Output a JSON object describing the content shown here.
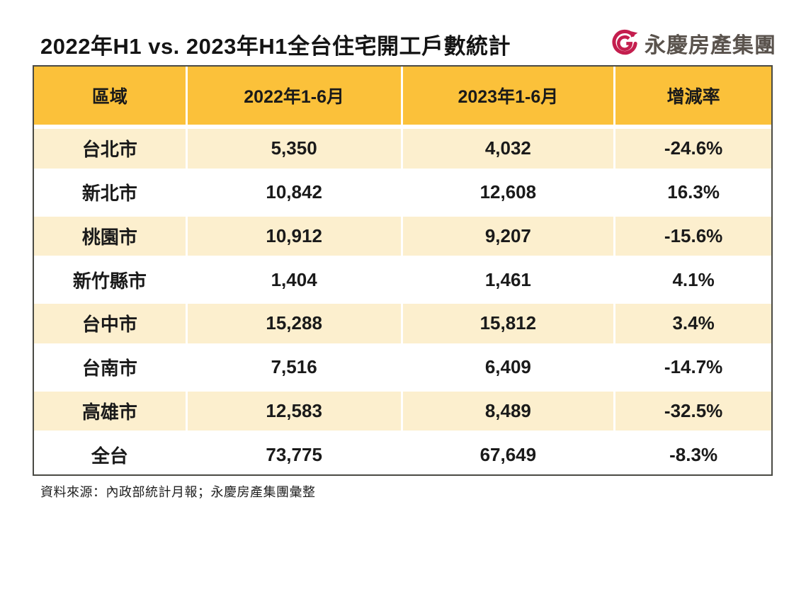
{
  "page": {
    "title": "2022年H1 vs. 2023年H1全台住宅開工戶數統計",
    "source_note": "資料來源：內政部統計月報；永慶房產集團彙整"
  },
  "logo": {
    "text": "永慶房產集團",
    "icon": "yungching-logo-icon"
  },
  "colors": {
    "header_bg": "#FBC13A",
    "row_stripe_bg": "#FCEFCE",
    "table_border": "#4A4A44",
    "logo_red": "#C41E4E",
    "logo_text_gray": "#59524C",
    "text_black": "#1A1A1A"
  },
  "table": {
    "headers": [
      "區域",
      "2022年1-6月",
      "2023年1-6月",
      "增減率"
    ],
    "rows": [
      [
        "台北市",
        "5,350",
        "4,032",
        "-24.6%"
      ],
      [
        "新北市",
        "10,842",
        "12,608",
        "16.3%"
      ],
      [
        "桃園市",
        "10,912",
        "9,207",
        "-15.6%"
      ],
      [
        "新竹縣市",
        "1,404",
        "1,461",
        "4.1%"
      ],
      [
        "台中市",
        "15,288",
        "15,812",
        "3.4%"
      ],
      [
        "台南市",
        "7,516",
        "6,409",
        "-14.7%"
      ],
      [
        "高雄市",
        "12,583",
        "8,489",
        "-32.5%"
      ],
      [
        "全台",
        "73,775",
        "67,649",
        "-8.3%"
      ]
    ]
  },
  "chart_data": {
    "type": "table",
    "title": "2022年H1 vs. 2023年H1全台住宅開工戶數統計",
    "columns": [
      "區域",
      "2022年1-6月",
      "2023年1-6月",
      "增減率"
    ],
    "regions": [
      "台北市",
      "新北市",
      "桃園市",
      "新竹縣市",
      "台中市",
      "台南市",
      "高雄市",
      "全台"
    ],
    "series": [
      {
        "name": "2022年1-6月",
        "values": [
          5350,
          10842,
          10912,
          1404,
          15288,
          7516,
          12583,
          73775
        ]
      },
      {
        "name": "2023年1-6月",
        "values": [
          4032,
          12608,
          9207,
          1461,
          15812,
          6409,
          8489,
          67649
        ]
      },
      {
        "name": "增減率(%)",
        "values": [
          -24.6,
          16.3,
          -15.6,
          4.1,
          3.4,
          -14.7,
          -32.5,
          -8.3
        ]
      }
    ],
    "source": "資料來源：內政部統計月報；永慶房產集團彙整"
  }
}
